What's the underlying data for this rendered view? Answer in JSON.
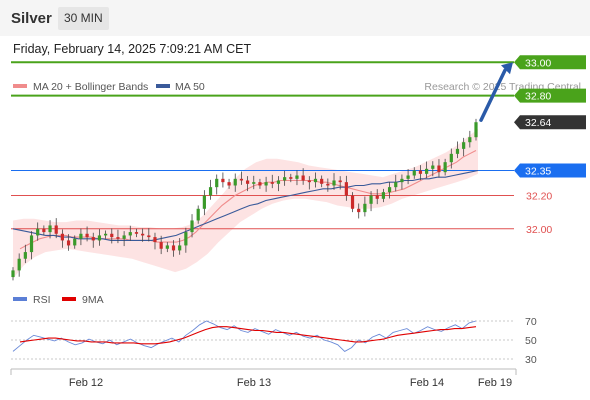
{
  "header": {
    "title": "Silver",
    "timeframe": "30 MIN"
  },
  "datetime": "Friday, February 14, 2025 7:09:21 AM CET",
  "legend": {
    "items": [
      {
        "label": "MA 20 + Bollinger Bands",
        "color": "#f08c8c"
      },
      {
        "label": "MA 50",
        "color": "#3a5a9a"
      }
    ]
  },
  "copyright": "Research © 2025 Trading Central",
  "levels": [
    {
      "value": 33.0,
      "label": "33.00",
      "kind": "resistance",
      "color": "#4aa31b"
    },
    {
      "value": 32.8,
      "label": "32.80",
      "kind": "resistance",
      "color": "#4aa31b"
    },
    {
      "value": 32.64,
      "label": "32.64",
      "kind": "last-price",
      "color": "#333333"
    },
    {
      "value": 32.35,
      "label": "32.35",
      "kind": "pivot",
      "color": "#1a6ef0"
    },
    {
      "value": 32.2,
      "label": "32.20",
      "kind": "support",
      "color": "#e05050"
    },
    {
      "value": 32.0,
      "label": "32.00",
      "kind": "support",
      "color": "#e05050"
    }
  ],
  "chart_data": {
    "type": "line",
    "title": "",
    "xlabel": "",
    "ylabel": "",
    "ylim": [
      31.55,
      33.05
    ],
    "x_ticks": [
      "Feb 12",
      "Feb 13",
      "Feb 14",
      "Feb 19"
    ],
    "price_closes": [
      31.75,
      31.82,
      31.86,
      31.96,
      32.0,
      31.98,
      32.02,
      31.97,
      31.93,
      31.9,
      31.94,
      31.97,
      31.95,
      31.93,
      31.96,
      31.97,
      31.95,
      31.94,
      31.96,
      31.98,
      31.97,
      31.96,
      31.95,
      31.92,
      31.88,
      31.9,
      31.87,
      31.9,
      31.98,
      32.05,
      32.12,
      32.2,
      32.25,
      32.3,
      32.28,
      32.26,
      32.3,
      32.29,
      32.27,
      32.28,
      32.26,
      32.28,
      32.27,
      32.29,
      32.31,
      32.3,
      32.32,
      32.29,
      32.28,
      32.3,
      32.27,
      32.26,
      32.29,
      32.28,
      32.2,
      32.12,
      32.1,
      32.15,
      32.2,
      32.18,
      32.22,
      32.25,
      32.28,
      32.3,
      32.32,
      32.35,
      32.33,
      32.36,
      32.38,
      32.34,
      32.4,
      32.45,
      32.48,
      32.52,
      32.55,
      32.64
    ],
    "ma20": [
      31.88,
      31.9,
      31.92,
      31.94,
      31.95,
      31.96,
      31.96,
      31.96,
      31.95,
      31.95,
      31.95,
      31.95,
      31.94,
      31.94,
      31.94,
      31.94,
      31.94,
      31.93,
      31.93,
      31.93,
      31.93,
      31.92,
      31.92,
      31.92,
      31.92,
      31.93,
      31.95,
      31.98,
      32.02,
      32.06,
      32.1,
      32.14,
      32.17,
      32.2,
      32.22,
      32.24,
      32.26,
      32.27,
      32.28,
      32.28,
      32.29,
      32.29,
      32.29,
      32.29,
      32.29,
      32.29,
      32.28,
      32.28,
      32.27,
      32.26,
      32.25,
      32.24,
      32.23,
      32.22,
      32.21,
      32.21,
      32.21,
      32.22,
      32.23,
      32.24,
      32.26,
      32.28,
      32.3,
      32.32,
      32.34,
      32.36,
      32.38,
      32.4,
      32.43,
      32.45,
      32.47
    ],
    "ma50": [
      32.0,
      31.99,
      31.98,
      31.97,
      31.96,
      31.96,
      31.95,
      31.95,
      31.94,
      31.94,
      31.94,
      31.94,
      31.93,
      31.93,
      31.93,
      31.93,
      31.93,
      31.93,
      31.94,
      31.95,
      31.96,
      31.98,
      32.0,
      32.02,
      32.04,
      32.06,
      32.08,
      32.1,
      32.12,
      32.14,
      32.15,
      32.17,
      32.18,
      32.19,
      32.2,
      32.21,
      32.22,
      32.23,
      32.24,
      32.24,
      32.25,
      32.25,
      32.26,
      32.26,
      32.27,
      32.27,
      32.28,
      32.28,
      32.29,
      32.29,
      32.3,
      32.3,
      32.31,
      32.31,
      32.32,
      32.33,
      32.34,
      32.35
    ],
    "bollinger_upper": [
      32.05,
      32.06,
      32.06,
      32.05,
      32.04,
      32.04,
      32.05,
      32.05,
      32.04,
      32.03,
      32.02,
      32.02,
      32.01,
      32.01,
      32.0,
      32.0,
      32.01,
      32.03,
      32.08,
      32.15,
      32.22,
      32.3,
      32.36,
      32.4,
      32.42,
      32.42,
      32.41,
      32.4,
      32.38,
      32.37,
      32.36,
      32.35,
      32.34,
      32.33,
      32.32,
      32.31,
      32.33,
      32.35,
      32.37,
      32.4,
      32.43,
      32.46,
      32.5,
      32.55,
      32.6
    ],
    "bollinger_lower": [
      31.7,
      31.78,
      31.83,
      31.86,
      31.87,
      31.88,
      31.87,
      31.86,
      31.85,
      31.84,
      31.83,
      31.82,
      31.8,
      31.78,
      31.76,
      31.74,
      31.76,
      31.8,
      31.85,
      31.92,
      31.98,
      32.04,
      32.08,
      32.12,
      32.15,
      32.17,
      32.18,
      32.18,
      32.17,
      32.16,
      32.14,
      32.13,
      32.12,
      32.12,
      32.13,
      32.15,
      32.18,
      32.2,
      32.22,
      32.24,
      32.26,
      32.28,
      32.3,
      32.33
    ],
    "forecast_target": 33.0,
    "rsi_panel": {
      "legend": [
        {
          "label": "RSI",
          "color": "#5b7fd6"
        },
        {
          "label": "9MA",
          "color": "#e00000"
        }
      ],
      "ylim": [
        20,
        80
      ],
      "levels": [
        70,
        50,
        30
      ],
      "level_labels": [
        "70",
        "50",
        "30"
      ],
      "rsi": [
        38,
        44,
        50,
        55,
        53,
        51,
        49,
        52,
        48,
        45,
        47,
        51,
        48,
        46,
        50,
        45,
        48,
        51,
        47,
        44,
        42,
        46,
        49,
        52,
        48,
        55,
        60,
        66,
        70,
        67,
        63,
        61,
        65,
        60,
        58,
        62,
        59,
        56,
        61,
        58,
        55,
        58,
        54,
        52,
        55,
        50,
        48,
        45,
        38,
        42,
        50,
        47,
        53,
        56,
        52,
        58,
        60,
        62,
        57,
        60,
        64,
        61,
        59,
        63,
        66,
        62,
        68,
        70
      ],
      "rsi_ma": [
        48,
        49,
        50,
        51,
        52,
        52,
        51,
        50,
        49,
        49,
        48,
        48,
        48,
        47,
        47,
        47,
        47,
        46,
        46,
        46,
        47,
        48,
        50,
        52,
        55,
        58,
        61,
        63,
        64,
        64,
        63,
        62,
        61,
        60,
        60,
        59,
        58,
        58,
        57,
        56,
        55,
        54,
        53,
        52,
        51,
        50,
        49,
        48,
        48,
        49,
        50,
        51,
        53,
        55,
        56,
        57,
        58,
        59,
        60,
        61,
        61,
        62,
        62,
        63,
        64
      ]
    }
  }
}
